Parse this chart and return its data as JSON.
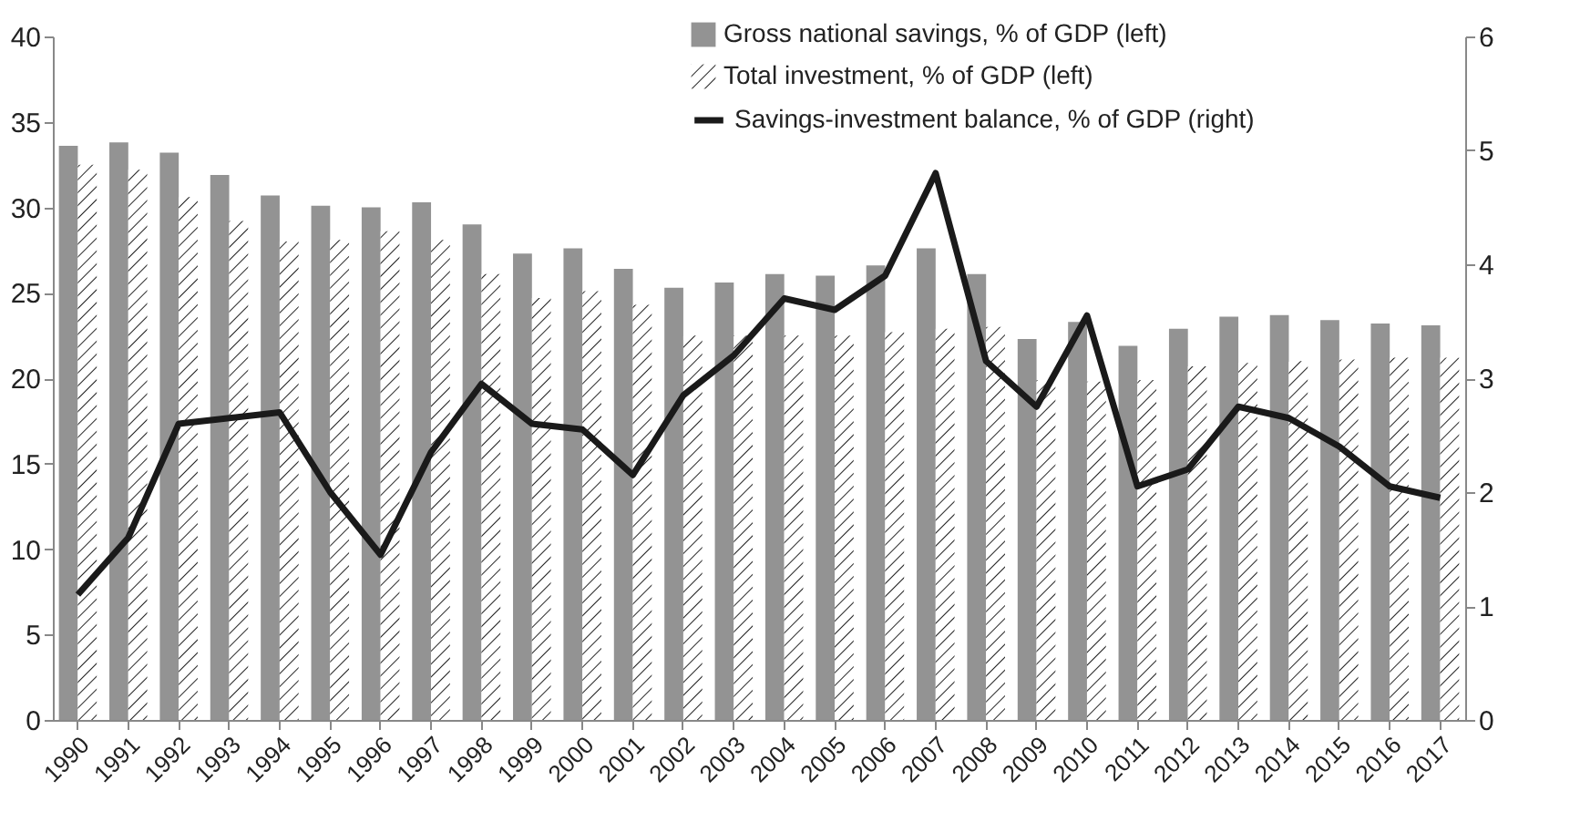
{
  "chart_data": {
    "type": "bar",
    "categories": [
      "1990",
      "1991",
      "1992",
      "1993",
      "1994",
      "1995",
      "1996",
      "1997",
      "1998",
      "1999",
      "2000",
      "2001",
      "2002",
      "2003",
      "2004",
      "2005",
      "2006",
      "2007",
      "2008",
      "2009",
      "2010",
      "2011",
      "2012",
      "2013",
      "2014",
      "2015",
      "2016",
      "2017"
    ],
    "series": [
      {
        "name": "Gross national savings, % of GDP (left)",
        "color": "#939393",
        "values": [
          33.6,
          33.8,
          33.2,
          31.9,
          30.7,
          30.1,
          30.0,
          30.3,
          29.0,
          27.3,
          27.6,
          26.4,
          25.3,
          25.6,
          26.1,
          26.0,
          26.6,
          27.6,
          26.1,
          22.3,
          23.3,
          21.9,
          22.9,
          23.6,
          23.7,
          23.4,
          23.2,
          23.1
        ]
      },
      {
        "name": "Total investment, % of GDP (left)",
        "color": "#ffffff",
        "values": [
          32.5,
          32.2,
          30.6,
          29.2,
          28.0,
          28.1,
          28.6,
          28.1,
          26.1,
          24.7,
          25.1,
          24.3,
          22.5,
          22.5,
          22.5,
          22.5,
          22.7,
          22.9,
          23.0,
          19.9,
          19.8,
          19.9,
          20.7,
          20.9,
          21.0,
          21.1,
          21.2,
          21.2
        ]
      },
      {
        "name": "Savings-investment balance, % of GDP (right)",
        "type": "line",
        "axis": "y2",
        "color": "#1a1a1a",
        "values": [
          1.1,
          1.6,
          2.6,
          2.65,
          2.7,
          2.0,
          1.45,
          2.35,
          2.95,
          2.6,
          2.55,
          2.15,
          2.85,
          3.2,
          3.7,
          3.6,
          3.9,
          4.8,
          3.15,
          2.75,
          3.55,
          2.05,
          2.2,
          2.75,
          2.65,
          2.4,
          2.05,
          1.95
        ]
      }
    ],
    "ylim": [
      0,
      40
    ],
    "yticks": [
      0,
      5,
      10,
      15,
      20,
      25,
      30,
      35,
      40
    ],
    "y2lim": [
      0,
      6
    ],
    "y2ticks": [
      0,
      1,
      2,
      3,
      4,
      5,
      6
    ],
    "grid": false,
    "legend": "top right"
  }
}
